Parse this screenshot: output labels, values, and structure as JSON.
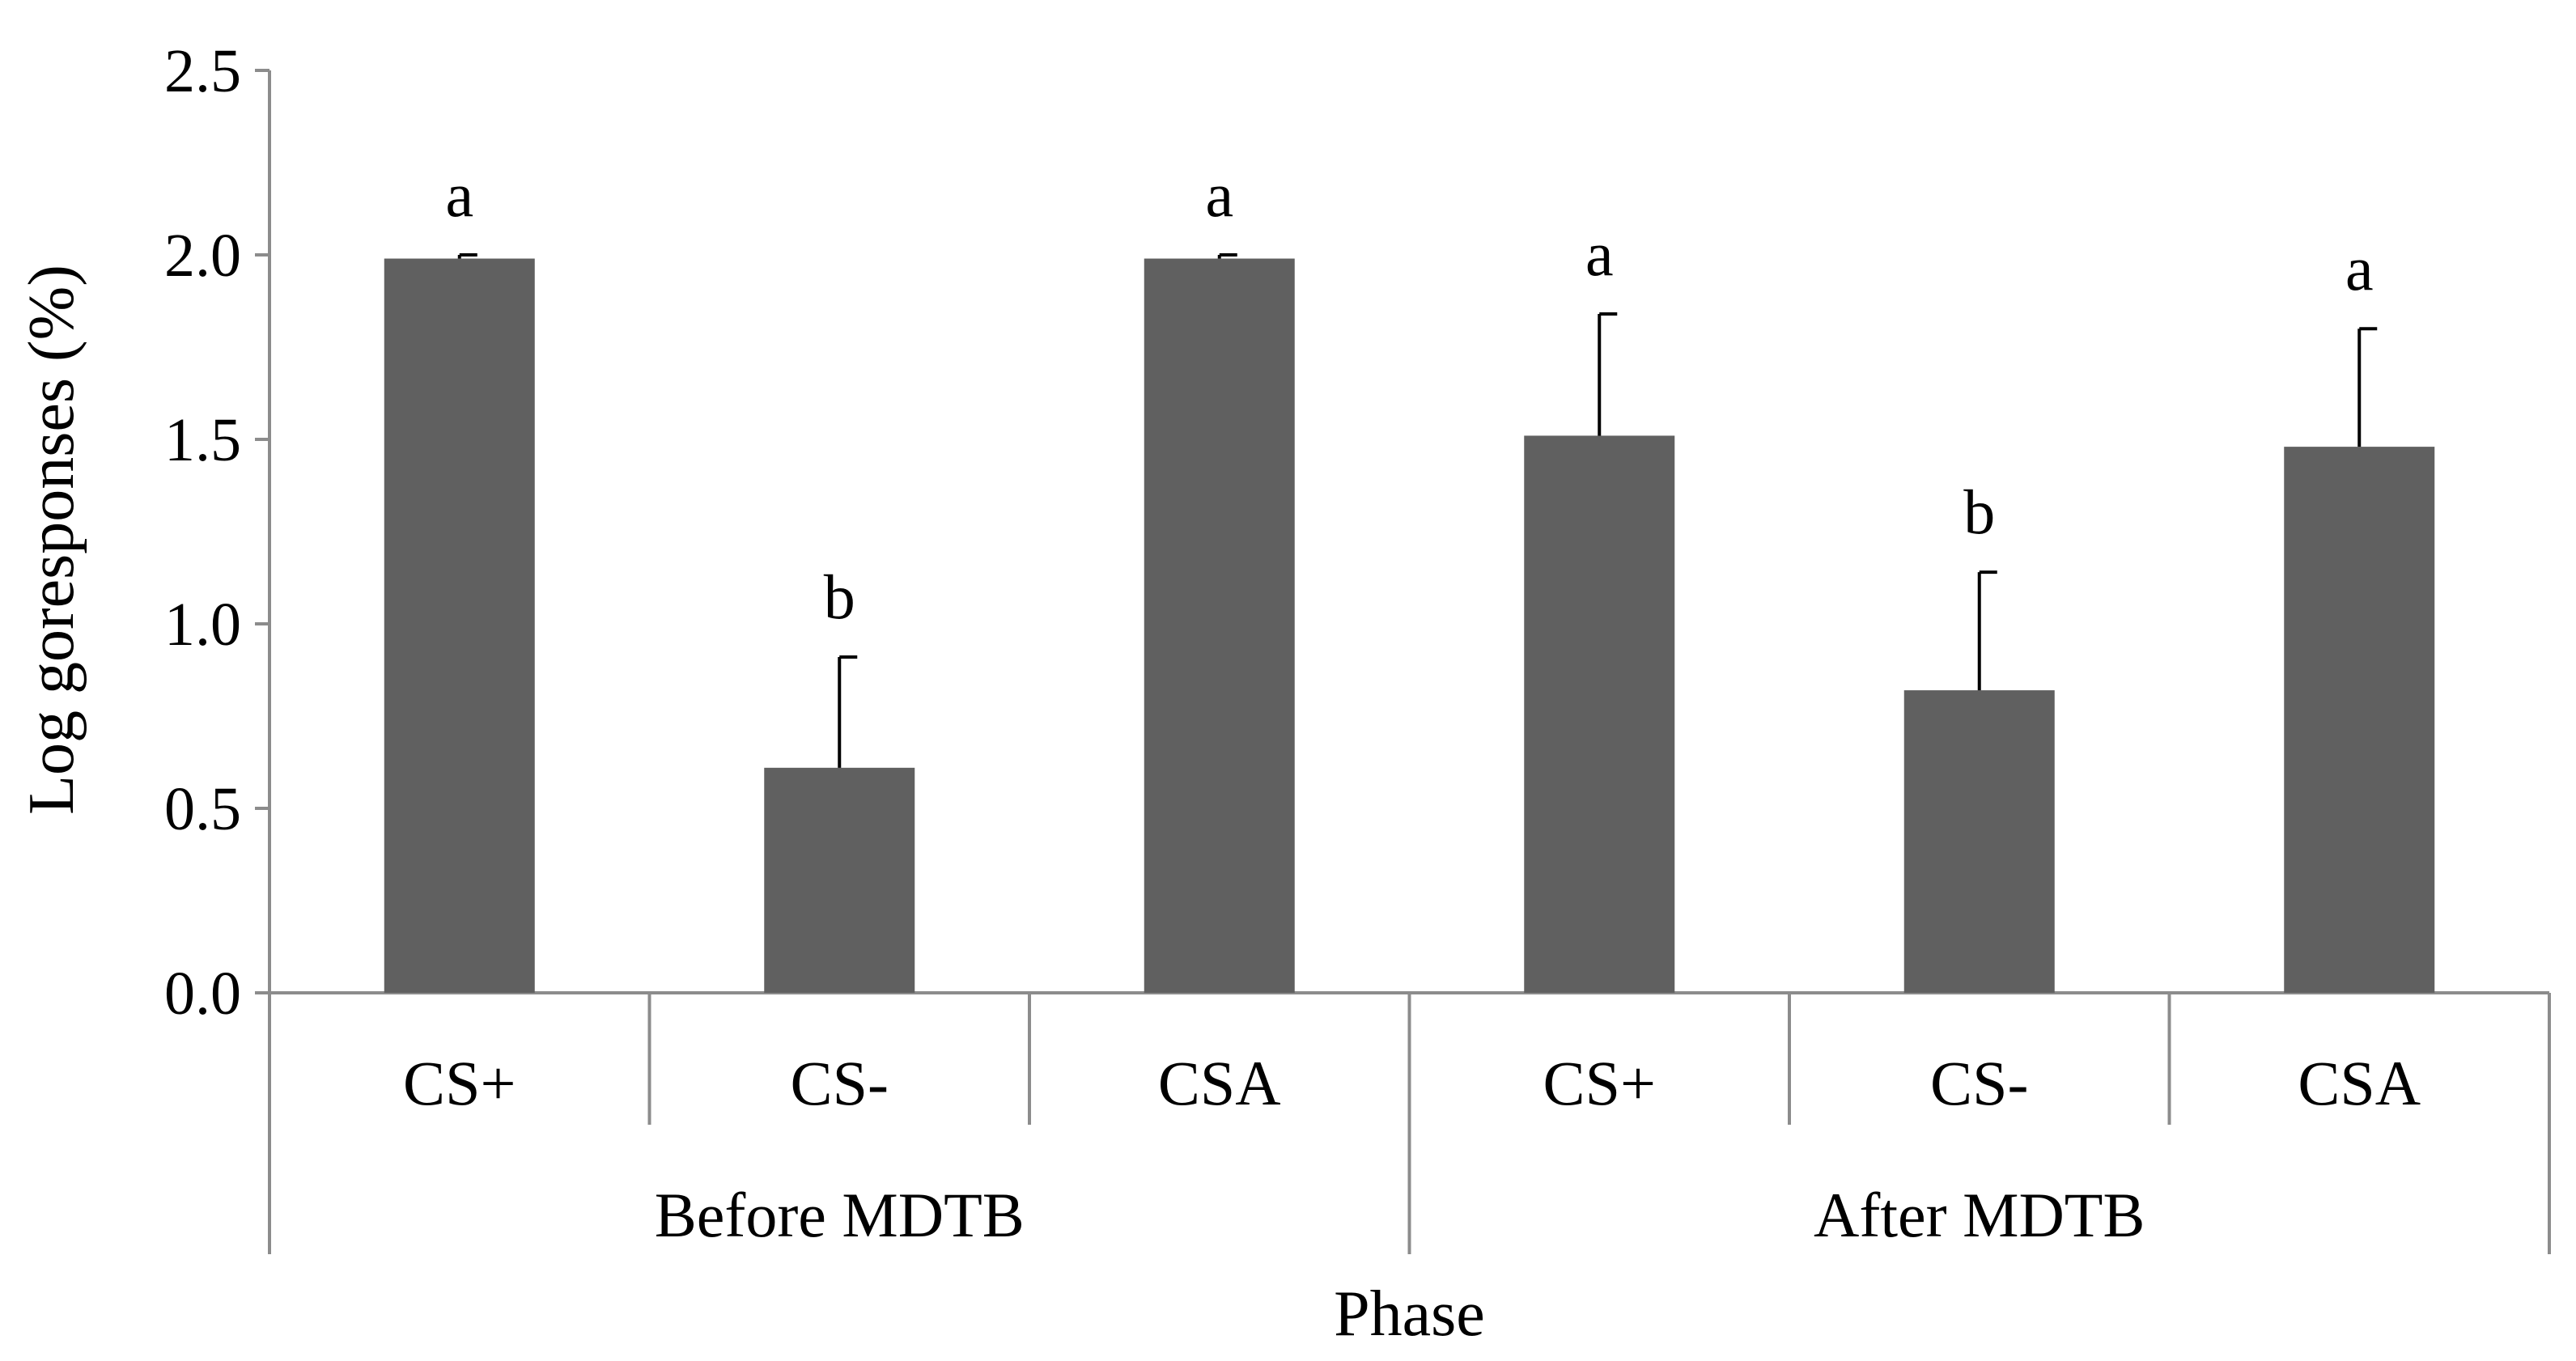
{
  "chart_data": {
    "type": "bar",
    "title": "",
    "xlabel": "Phase",
    "ylabel": "Log goresponses (%)",
    "ylim": [
      0,
      2.5
    ],
    "yticks": [
      "0.0",
      "0.5",
      "1.0",
      "1.5",
      "2.0",
      "2.5"
    ],
    "grid": false,
    "legend": "none",
    "bar_color": "#606060",
    "groups": [
      {
        "label": "Before MDTB",
        "bars": [
          {
            "category": "CS+",
            "value": 1.99,
            "error": 0.01,
            "letter": "a"
          },
          {
            "category": "CS-",
            "value": 0.61,
            "error": 0.3,
            "letter": "b"
          },
          {
            "category": "CSA",
            "value": 1.99,
            "error": 0.01,
            "letter": "a"
          }
        ]
      },
      {
        "label": "After MDTB",
        "bars": [
          {
            "category": "CS+",
            "value": 1.51,
            "error": 0.33,
            "letter": "a"
          },
          {
            "category": "CS-",
            "value": 0.82,
            "error": 0.32,
            "letter": "b"
          },
          {
            "category": "CSA",
            "value": 1.48,
            "error": 0.32,
            "letter": "a"
          }
        ]
      }
    ]
  }
}
